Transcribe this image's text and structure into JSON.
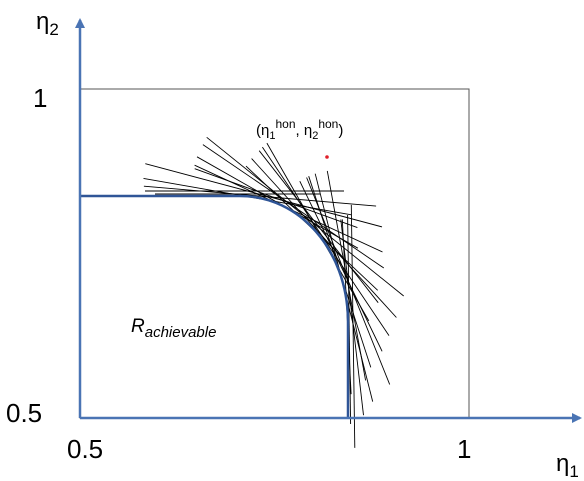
{
  "axes": {
    "x_label_base": "η",
    "x_label_sub": "1",
    "y_label_base": "η",
    "y_label_sub": "2",
    "x_tick_min": "0.5",
    "x_tick_max": "1",
    "y_tick_min": "0.5",
    "y_tick_max": "1"
  },
  "region_label": {
    "base": "R",
    "sub": "achievable"
  },
  "point_label": {
    "open": "(η",
    "sub1": "1",
    "sup1": "hon",
    "mid": ", η",
    "sub2": "2",
    "sup2": "hon",
    "close": ")"
  },
  "colors": {
    "axis": "#4a74b4",
    "boundary": "#2f5597",
    "tangent": "#000000",
    "box": "#555555",
    "point": "#e0202a"
  }
}
